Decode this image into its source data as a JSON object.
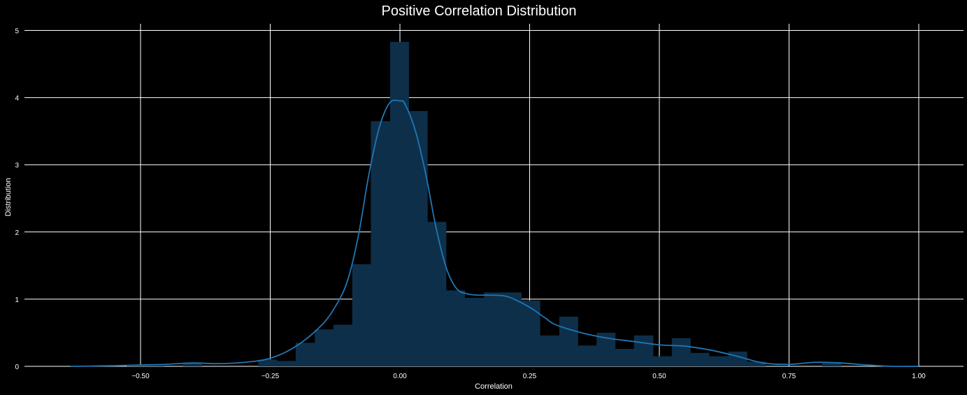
{
  "chart_data": {
    "type": "bar",
    "title": "Positive Correlation Distribution",
    "xlabel": "Correlation",
    "ylabel": "Distribution",
    "xlim": [
      -0.635,
      1.0
    ],
    "ylim": [
      0,
      5
    ],
    "xticks": [
      -0.5,
      -0.25,
      0.0,
      0.25,
      0.5,
      0.75,
      1.0
    ],
    "xtick_labels": [
      "−0.50",
      "−0.25",
      "0.00",
      "0.25",
      "0.50",
      "0.75",
      "1.00"
    ],
    "yticks": [
      0,
      1,
      2,
      3,
      4,
      5
    ],
    "ytick_labels": [
      "0",
      "1",
      "2",
      "3",
      "4",
      "5"
    ],
    "grid": true,
    "bar_color": "#0e2f4a",
    "line_color": "#1f77b4",
    "background": "#000000",
    "histogram": {
      "bin_edges": [
        -0.635,
        -0.599,
        -0.563,
        -0.527,
        -0.49,
        -0.454,
        -0.418,
        -0.382,
        -0.345,
        -0.309,
        -0.273,
        -0.237,
        -0.201,
        -0.164,
        -0.128,
        -0.092,
        -0.056,
        -0.019,
        0.017,
        0.053,
        0.089,
        0.125,
        0.162,
        0.198,
        0.234,
        0.27,
        0.307,
        0.343,
        0.379,
        0.415,
        0.451,
        0.488,
        0.524,
        0.56,
        0.596,
        0.633,
        0.669,
        0.705,
        0.741,
        0.777,
        0.814,
        0.85
      ],
      "heights": [
        0,
        0,
        0,
        0.02,
        0.02,
        0,
        0.05,
        0,
        0,
        0,
        0.1,
        0.08,
        0.35,
        0.55,
        0.62,
        1.52,
        3.65,
        4.83,
        3.8,
        2.15,
        1.13,
        1.02,
        1.1,
        1.1,
        0.98,
        0.46,
        0.74,
        0.31,
        0.5,
        0.26,
        0.46,
        0.15,
        0.42,
        0.2,
        0.15,
        0.22,
        0.07,
        0,
        0,
        0,
        0.06
      ]
    },
    "kde": {
      "x": [
        -0.635,
        -0.55,
        -0.5,
        -0.45,
        -0.4,
        -0.35,
        -0.3,
        -0.25,
        -0.2,
        -0.15,
        -0.12,
        -0.1,
        -0.08,
        -0.06,
        -0.04,
        -0.02,
        0.0,
        0.01,
        0.03,
        0.05,
        0.07,
        0.09,
        0.11,
        0.13,
        0.15,
        0.17,
        0.2,
        0.22,
        0.25,
        0.28,
        0.3,
        0.35,
        0.4,
        0.45,
        0.5,
        0.55,
        0.6,
        0.65,
        0.7,
        0.75,
        0.8,
        0.85,
        0.9,
        0.95,
        1.0
      ],
      "y": [
        0.0,
        0.01,
        0.02,
        0.03,
        0.05,
        0.04,
        0.06,
        0.12,
        0.3,
        0.62,
        0.95,
        1.3,
        1.95,
        2.85,
        3.55,
        3.92,
        3.95,
        3.9,
        3.5,
        2.85,
        2.05,
        1.45,
        1.15,
        1.08,
        1.06,
        1.06,
        1.05,
        1.0,
        0.88,
        0.72,
        0.62,
        0.5,
        0.42,
        0.37,
        0.32,
        0.3,
        0.24,
        0.15,
        0.05,
        0.03,
        0.06,
        0.05,
        0.02,
        0.0,
        0.0
      ]
    }
  }
}
